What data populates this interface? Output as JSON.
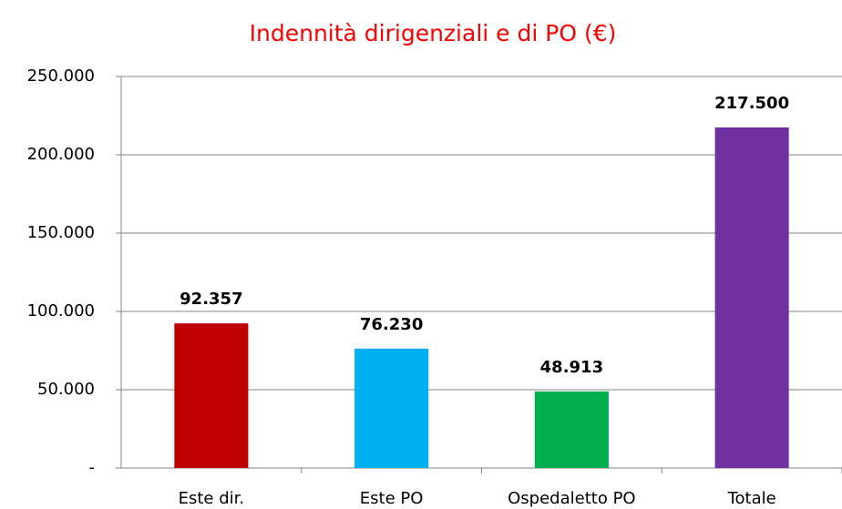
{
  "chart_data": {
    "type": "bar",
    "title": "Indennità dirigenziali e di PO (€)",
    "categories": [
      "Este dir.",
      "Este PO",
      "Ospedaletto PO",
      "Totale"
    ],
    "values": [
      92357,
      76230,
      48913,
      217500
    ],
    "value_labels": [
      "92.357",
      "76.230",
      "48.913",
      "217.500"
    ],
    "colors": [
      "#c00000",
      "#00b0f0",
      "#00b050",
      "#7030a0"
    ],
    "ylim": [
      0,
      250000
    ],
    "yticks": [
      {
        "value": 0,
        "label": "-"
      },
      {
        "value": 50000,
        "label": "50.000"
      },
      {
        "value": 100000,
        "label": "100.000"
      },
      {
        "value": 150000,
        "label": "150.000"
      },
      {
        "value": 200000,
        "label": "200.000"
      },
      {
        "value": 250000,
        "label": "250.000"
      }
    ],
    "grid": true
  }
}
